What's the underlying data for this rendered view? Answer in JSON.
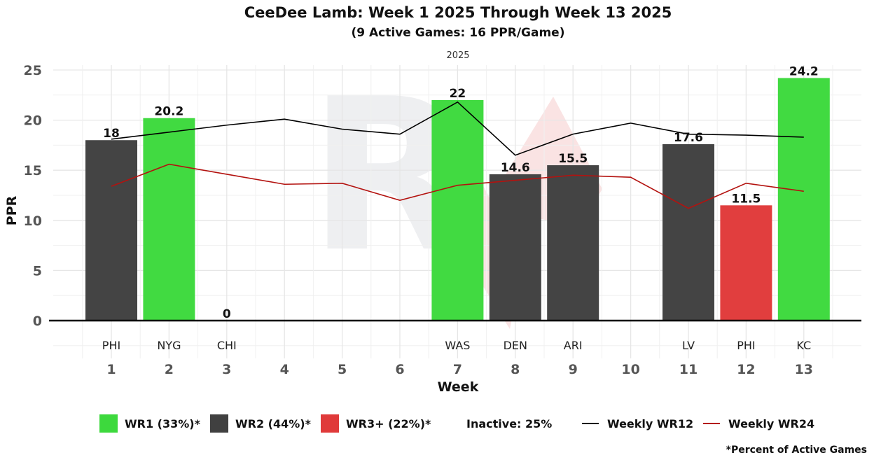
{
  "chart_data": {
    "type": "bar",
    "title": "CeeDee Lamb: Week 1 2025 Through Week 13 2025",
    "subtitle": "(9 Active Games: 16 PPR/Game)",
    "facet_label": "2025",
    "xlabel": "Week",
    "ylabel": "PPR",
    "ylim": [
      -3.5,
      25.5
    ],
    "yticks": [
      0,
      5,
      10,
      15,
      20,
      25
    ],
    "weeks": [
      1,
      2,
      3,
      4,
      5,
      6,
      7,
      8,
      9,
      10,
      11,
      12,
      13
    ],
    "bars": [
      {
        "week": 1,
        "opponent": "PHI",
        "value": 18,
        "label": "18",
        "tier": "WR2"
      },
      {
        "week": 2,
        "opponent": "NYG",
        "value": 20.2,
        "label": "20.2",
        "tier": "WR1"
      },
      {
        "week": 3,
        "opponent": "CHI",
        "value": 0,
        "label": "0",
        "tier": "WR3+"
      },
      {
        "week": 7,
        "opponent": "WAS",
        "value": 22,
        "label": "22",
        "tier": "WR1"
      },
      {
        "week": 8,
        "opponent": "DEN",
        "value": 14.6,
        "label": "14.6",
        "tier": "WR2"
      },
      {
        "week": 9,
        "opponent": "ARI",
        "value": 15.5,
        "label": "15.5",
        "tier": "WR2"
      },
      {
        "week": 11,
        "opponent": "LV",
        "value": 17.6,
        "label": "17.6",
        "tier": "WR2"
      },
      {
        "week": 12,
        "opponent": "PHI",
        "value": 11.5,
        "label": "11.5",
        "tier": "WR3+"
      },
      {
        "week": 13,
        "opponent": "KC",
        "value": 24.2,
        "label": "24.2",
        "tier": "WR1"
      }
    ],
    "series": [
      {
        "name": "Weekly WR12",
        "color": "#000000",
        "x": [
          1,
          2,
          3,
          4,
          5,
          6,
          7,
          8,
          9,
          10,
          11,
          12,
          13
        ],
        "values": [
          18.1,
          18.8,
          19.5,
          20.1,
          19.1,
          18.6,
          21.8,
          16.5,
          18.6,
          19.7,
          18.6,
          18.5,
          18.3
        ]
      },
      {
        "name": "Weekly WR24",
        "color": "#b3120f",
        "x": [
          1,
          2,
          3,
          4,
          5,
          6,
          7,
          8,
          9,
          10,
          11,
          12,
          13
        ],
        "values": [
          13.4,
          15.6,
          14.6,
          13.6,
          13.7,
          12.0,
          13.5,
          14.0,
          14.5,
          14.3,
          11.2,
          13.7,
          12.9
        ]
      }
    ],
    "tier_colors": {
      "WR1": "#3dd93d",
      "WR2": "#404040",
      "WR3+": "#e03a3a"
    },
    "legend": [
      {
        "key": "WR1",
        "label": "WR1 (33%)*",
        "kind": "box",
        "color": "#3dd93d"
      },
      {
        "key": "WR2",
        "label": "WR2 (44%)*",
        "kind": "box",
        "color": "#404040"
      },
      {
        "key": "WR3+",
        "label": "WR3+ (22%)*",
        "kind": "box",
        "color": "#e03a3a"
      },
      {
        "key": "inactive",
        "label": "Inactive: 25%",
        "kind": "text"
      },
      {
        "key": "wr12",
        "label": "Weekly WR12",
        "kind": "line",
        "color": "#000000"
      },
      {
        "key": "wr24",
        "label": "Weekly WR24",
        "kind": "line",
        "color": "#b3120f"
      }
    ],
    "footnote": "*Percent of Active Games"
  }
}
